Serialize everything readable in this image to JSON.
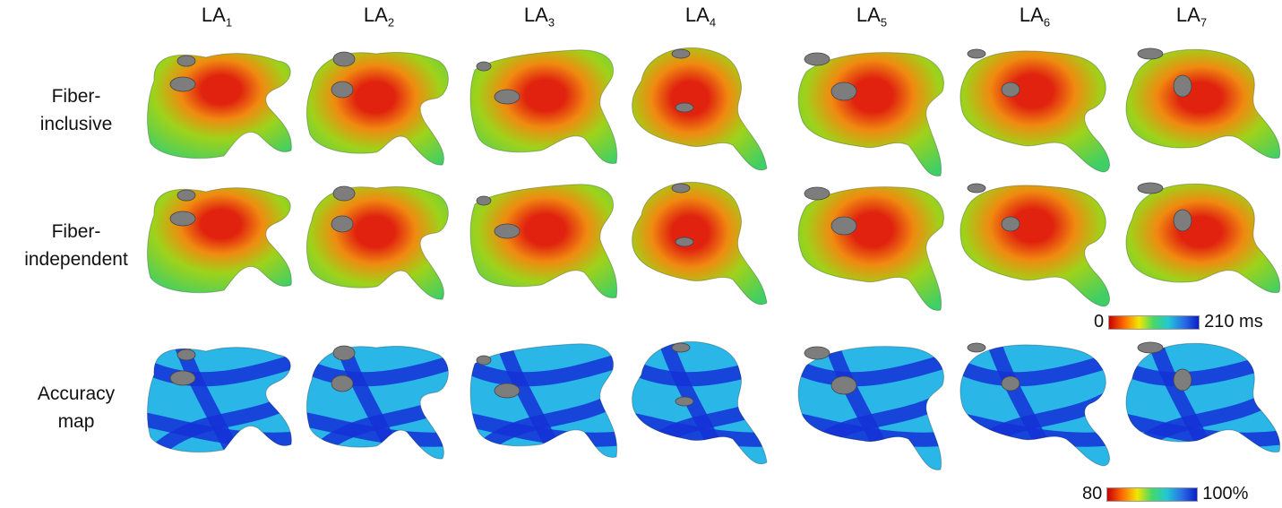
{
  "columns": [
    {
      "base": "LA",
      "sub": "1"
    },
    {
      "base": "LA",
      "sub": "2"
    },
    {
      "base": "LA",
      "sub": "3"
    },
    {
      "base": "LA",
      "sub": "4"
    },
    {
      "base": "LA",
      "sub": "5"
    },
    {
      "base": "LA",
      "sub": "6"
    },
    {
      "base": "LA",
      "sub": "7"
    }
  ],
  "rows": [
    {
      "line1": "Fiber-",
      "line2": "inclusive",
      "kind": "activation"
    },
    {
      "line1": "Fiber-",
      "line2": "independent",
      "kind": "activation"
    },
    {
      "line1": "Accuracy",
      "line2": "map",
      "kind": "accuracy"
    }
  ],
  "colorbars": {
    "activation": {
      "min": "0",
      "max": "210 ms"
    },
    "accuracy": {
      "min": "80",
      "max": "100%"
    }
  },
  "colors": {
    "activation_core": "#e0220f",
    "activation_mid": "#f08a10",
    "activation_outer": "#9fd21a",
    "activation_edge": "#3fcf66",
    "accuracy_base": "#2ab6e6",
    "accuracy_band": "#1431d6",
    "valve_grey": "#7d7d7d"
  }
}
